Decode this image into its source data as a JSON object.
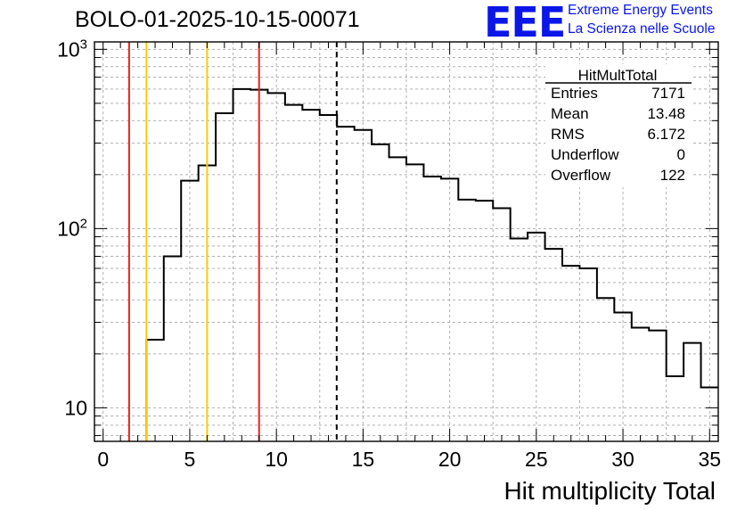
{
  "run_title": "BOLO-01-2025-10-15-00071",
  "logo": {
    "text": "EEE",
    "line1": "Extreme Energy Events",
    "line2": "La Scienza nelle Scuole",
    "color": "#0b16e8"
  },
  "stats": {
    "title": "HitMultTotal",
    "rows": [
      {
        "label": "Entries",
        "value": "7171"
      },
      {
        "label": "Mean",
        "value": "13.48"
      },
      {
        "label": "RMS",
        "value": "6.172"
      },
      {
        "label": "Underflow",
        "value": "0"
      },
      {
        "label": "Overflow",
        "value": "122"
      }
    ]
  },
  "chart_data": {
    "type": "histogram",
    "title": "BOLO-01-2025-10-15-00071",
    "xlabel": "Hit multiplicity Total",
    "ylabel": "",
    "xscale": "linear",
    "yscale": "log",
    "xlim": [
      -0.5,
      35.5
    ],
    "ylim": [
      6.5,
      1100
    ],
    "x_ticks": [
      0,
      5,
      10,
      15,
      20,
      25,
      30,
      35
    ],
    "x_tick_labels": [
      "0",
      "5",
      "10",
      "15",
      "20",
      "25",
      "30",
      "35"
    ],
    "y_ticks": [
      10,
      100,
      1000
    ],
    "y_tick_labels": [
      "10",
      "10^2",
      "10^3"
    ],
    "grid": true,
    "bins": {
      "lower_edges": [
        2.5,
        3.5,
        4.5,
        5.5,
        6.5,
        7.5,
        8.5,
        9.5,
        10.5,
        11.5,
        12.5,
        13.5,
        14.5,
        15.5,
        16.5,
        17.5,
        18.5,
        19.5,
        20.5,
        21.5,
        22.5,
        23.5,
        24.5,
        25.5,
        26.5,
        27.5,
        28.5,
        29.5,
        30.5,
        31.5,
        32.5,
        33.5,
        34.5
      ],
      "values": [
        24,
        70,
        185,
        225,
        440,
        600,
        595,
        570,
        490,
        460,
        430,
        370,
        355,
        295,
        250,
        228,
        195,
        190,
        145,
        143,
        130,
        88,
        95,
        77,
        62,
        60,
        41,
        34,
        28,
        27,
        15,
        23,
        13
      ]
    },
    "vertical_lines": [
      {
        "x": 1.5,
        "color": "#e8221c",
        "style": "solid"
      },
      {
        "x": 2.5,
        "color": "#ffcc00",
        "style": "solid"
      },
      {
        "x": 6.0,
        "color": "#ffcc00",
        "style": "solid"
      },
      {
        "x": 9.0,
        "color": "#e8221c",
        "style": "solid"
      },
      {
        "x": 13.48,
        "color": "#000000",
        "style": "dashed"
      }
    ],
    "line_color": "#000000"
  }
}
